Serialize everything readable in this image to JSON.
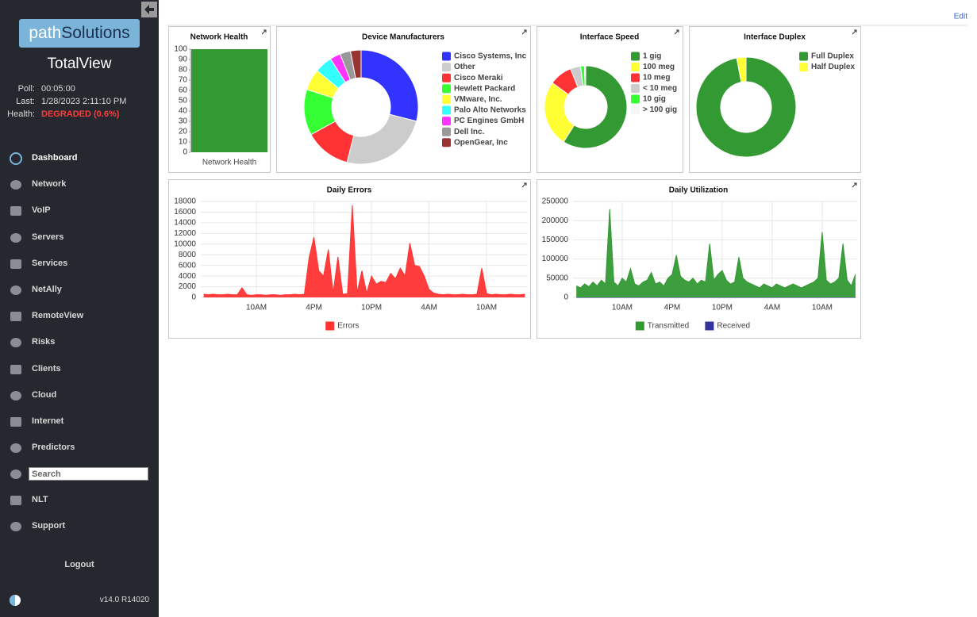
{
  "sidebar": {
    "logo": [
      "path",
      "Solutions"
    ],
    "product": "TotalView",
    "status": [
      {
        "label": "Poll:",
        "value": "00:05:00"
      },
      {
        "label": "Last:",
        "value": "1/28/2023 2:11:10 PM"
      },
      {
        "label": "Health:",
        "value": "DEGRADED (0.6%)"
      }
    ],
    "nav": [
      "Dashboard",
      "Network",
      "VoIP",
      "Servers",
      "Services",
      "NetAlly",
      "RemoteView",
      "Risks",
      "Clients",
      "Cloud",
      "Internet",
      "Predictors"
    ],
    "search_placeholder": "Search",
    "nav2": [
      "NLT",
      "Support"
    ],
    "logout": "Logout",
    "version": "v14.0 R14020"
  },
  "header": {
    "edit": "Edit"
  },
  "chart_data": [
    {
      "type": "bar",
      "title": "Network Health",
      "categories": [
        "Network Health"
      ],
      "values": [
        100
      ],
      "color": "#339933",
      "ylim": [
        0,
        100
      ],
      "yticks": [
        0,
        10,
        20,
        30,
        40,
        50,
        60,
        70,
        80,
        90,
        100
      ],
      "grid": false
    },
    {
      "type": "pie",
      "title": "Device Manufacturers",
      "categories": [
        "Cisco Systems, Inc",
        "Other",
        "Cisco Meraki",
        "Hewlett Packard",
        "VMware, Inc.",
        "Palo Alto Networks",
        "PC Engines GmbH",
        "Dell Inc.",
        "OpenGear, Inc"
      ],
      "values": [
        29,
        25,
        13,
        13,
        6,
        5,
        3,
        3,
        3
      ],
      "colors": [
        "#3333ff",
        "#cccccc",
        "#ff3333",
        "#33ff33",
        "#ffff33",
        "#33ffff",
        "#ff33ff",
        "#999999",
        "#993333"
      ],
      "donut": true,
      "legend": "right"
    },
    {
      "type": "pie",
      "title": "Interface Speed",
      "categories": [
        "1 gig",
        "100 meg",
        "10 meg",
        "< 10 meg",
        "10 gig",
        "> 100 gig"
      ],
      "values": [
        59,
        26,
        9,
        4,
        1.5,
        0.5
      ],
      "colors": [
        "#339933",
        "#ffff33",
        "#ff3333",
        "#cccccc",
        "#33ff33",
        "#f5f5f5"
      ],
      "donut": true,
      "legend": "right"
    },
    {
      "type": "pie",
      "title": "Interface Duplex",
      "categories": [
        "Full Duplex",
        "Half Duplex"
      ],
      "values": [
        97,
        3
      ],
      "colors": [
        "#339933",
        "#ffff33"
      ],
      "donut": true,
      "legend": "right"
    },
    {
      "type": "line",
      "title": "Daily Errors",
      "x": [
        0.5,
        1,
        1.5,
        2,
        2.5,
        3,
        3.5,
        4,
        4.5,
        5,
        5.5,
        6,
        6.5,
        7,
        7.5,
        8,
        8.5,
        9,
        9.5,
        10,
        10.5,
        11,
        11.5,
        12,
        12.5,
        13,
        13.5,
        14,
        14.5,
        15,
        15.5,
        16,
        16.5,
        17,
        17.5,
        18,
        18.5,
        19,
        19.5,
        20,
        20.5,
        21,
        21.5,
        22,
        22.5,
        23,
        23.5,
        24,
        24.5,
        25,
        25.5,
        26,
        26.5,
        27,
        27.5,
        28,
        28.5,
        29,
        29.5,
        30,
        30.5,
        31,
        31.5,
        32,
        32.5,
        33,
        33.5,
        34
      ],
      "series": [
        {
          "name": "Errors",
          "color": "#ff3333",
          "values": [
            600,
            500,
            600,
            500,
            500,
            600,
            500,
            500,
            1800,
            500,
            400,
            500,
            500,
            400,
            500,
            500,
            400,
            500,
            500,
            600,
            500,
            600,
            7500,
            11300,
            5000,
            4000,
            9000,
            800,
            7600,
            600,
            700,
            17300,
            900,
            5000,
            800,
            4000,
            2500,
            3000,
            2800,
            4500,
            3500,
            5500,
            4000,
            10200,
            6000,
            5800,
            4000,
            1500,
            800,
            600,
            500,
            600,
            500,
            500,
            600,
            500,
            500,
            600,
            5500,
            700,
            500,
            600,
            500,
            500,
            600,
            500,
            500,
            600
          ]
        }
      ],
      "xlim": [
        0.2,
        34.3
      ],
      "xticks": [
        {
          "value": 6,
          "label": "10AM"
        },
        {
          "value": 12,
          "label": "4PM"
        },
        {
          "value": 18,
          "label": "10PM"
        },
        {
          "value": 24,
          "label": "4AM"
        },
        {
          "value": 30,
          "label": "10AM"
        }
      ],
      "ylim": [
        0,
        18000
      ],
      "yticks": [
        0,
        2000,
        4000,
        6000,
        8000,
        10000,
        12000,
        14000,
        16000,
        18000
      ],
      "grid": true,
      "legend": "bottom"
    },
    {
      "type": "line",
      "title": "Daily Utilization",
      "x": [
        0.5,
        1,
        1.5,
        2,
        2.5,
        3,
        3.5,
        4,
        4.5,
        5,
        5.5,
        6,
        6.5,
        7,
        7.5,
        8,
        8.5,
        9,
        9.5,
        10,
        10.5,
        11,
        11.5,
        12,
        12.5,
        13,
        13.5,
        14,
        14.5,
        15,
        15.5,
        16,
        16.5,
        17,
        17.5,
        18,
        18.5,
        19,
        19.5,
        20,
        20.5,
        21,
        21.5,
        22,
        22.5,
        23,
        23.5,
        24,
        24.5,
        25,
        25.5,
        26,
        26.5,
        27,
        27.5,
        28,
        28.5,
        29,
        29.5,
        30,
        30.5,
        31,
        31.5,
        32,
        32.5,
        33,
        33.5,
        34
      ],
      "series": [
        {
          "name": "Transmitted",
          "color": "#339933",
          "values": [
            30000,
            25000,
            35000,
            28000,
            40000,
            30000,
            45000,
            35000,
            230000,
            40000,
            30000,
            50000,
            40000,
            75000,
            35000,
            30000,
            40000,
            45000,
            65000,
            35000,
            40000,
            30000,
            50000,
            60000,
            110000,
            55000,
            45000,
            40000,
            50000,
            35000,
            45000,
            40000,
            140000,
            45000,
            60000,
            70000,
            45000,
            35000,
            40000,
            105000,
            50000,
            40000,
            35000,
            30000,
            25000,
            35000,
            30000,
            25000,
            35000,
            30000,
            25000,
            30000,
            35000,
            30000,
            25000,
            30000,
            35000,
            40000,
            50000,
            170000,
            45000,
            35000,
            40000,
            50000,
            140000,
            45000,
            30000,
            60000
          ]
        },
        {
          "name": "Received",
          "color": "#333399",
          "values": [
            0,
            0,
            0,
            0,
            0,
            0,
            0,
            0,
            0,
            0,
            0,
            0,
            0,
            0,
            0,
            0,
            0,
            0,
            0,
            0,
            0,
            0,
            0,
            0,
            0,
            0,
            0,
            0,
            0,
            0,
            0,
            0,
            0,
            0,
            0,
            0,
            0,
            0,
            0,
            0,
            0,
            0,
            0,
            0,
            0,
            0,
            0,
            0,
            0,
            0,
            0,
            0,
            0,
            0,
            0,
            0,
            0,
            0,
            0,
            0,
            0,
            0,
            0,
            0,
            0,
            0,
            0,
            0
          ]
        }
      ],
      "xlim": [
        0.1,
        34.2
      ],
      "xticks": [
        {
          "value": 6,
          "label": "10AM"
        },
        {
          "value": 12,
          "label": "4PM"
        },
        {
          "value": 18,
          "label": "10PM"
        },
        {
          "value": 24,
          "label": "4AM"
        },
        {
          "value": 30,
          "label": "10AM"
        }
      ],
      "ylim": [
        0,
        250000
      ],
      "yticks": [
        0,
        50000,
        100000,
        150000,
        200000,
        250000
      ],
      "grid": true,
      "legend": "bottom"
    }
  ]
}
